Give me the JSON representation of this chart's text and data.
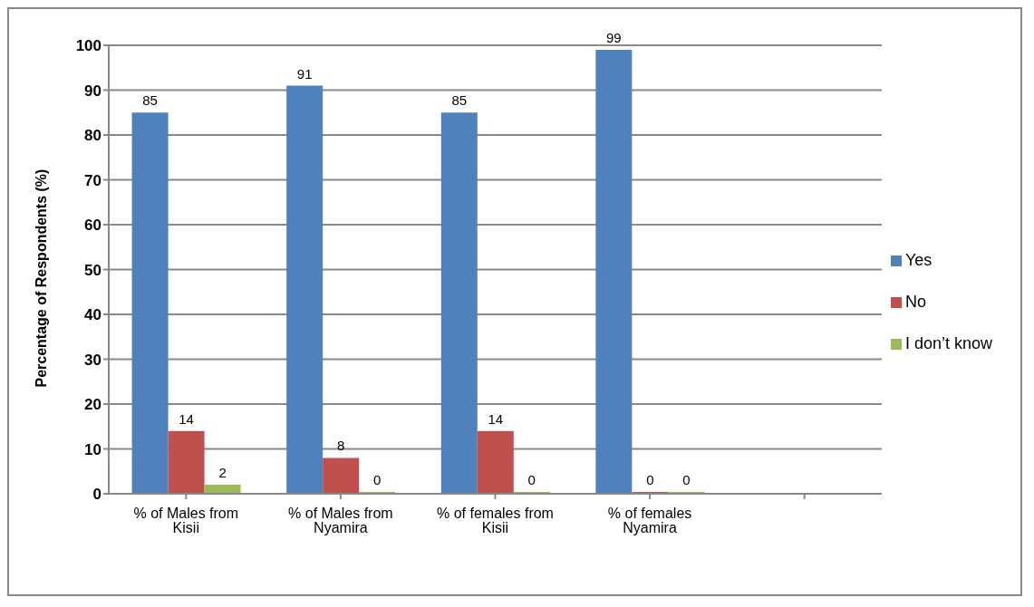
{
  "chart_data": {
    "type": "bar",
    "ylabel": "Percentage of Respondents (%)",
    "categories": [
      "% of Males from Kisii",
      "% of Males from Nyamira",
      "% of females from Kisii",
      "% of females Nyamira",
      null
    ],
    "series": [
      {
        "name": "Yes",
        "color": "#4f81bd",
        "values": [
          85,
          91,
          85,
          99,
          null
        ]
      },
      {
        "name": "No",
        "color": "#c0504d",
        "values": [
          14,
          8,
          14,
          0,
          null
        ]
      },
      {
        "name": "I don’t know",
        "color": "#9bbb59",
        "values": [
          2,
          0,
          0,
          0,
          null
        ]
      }
    ],
    "ylim": [
      0,
      100
    ],
    "yticks": [
      0,
      10,
      20,
      30,
      40,
      50,
      60,
      70,
      80,
      90,
      100
    ],
    "grid": "y",
    "legend": "right",
    "data_labels": true
  }
}
